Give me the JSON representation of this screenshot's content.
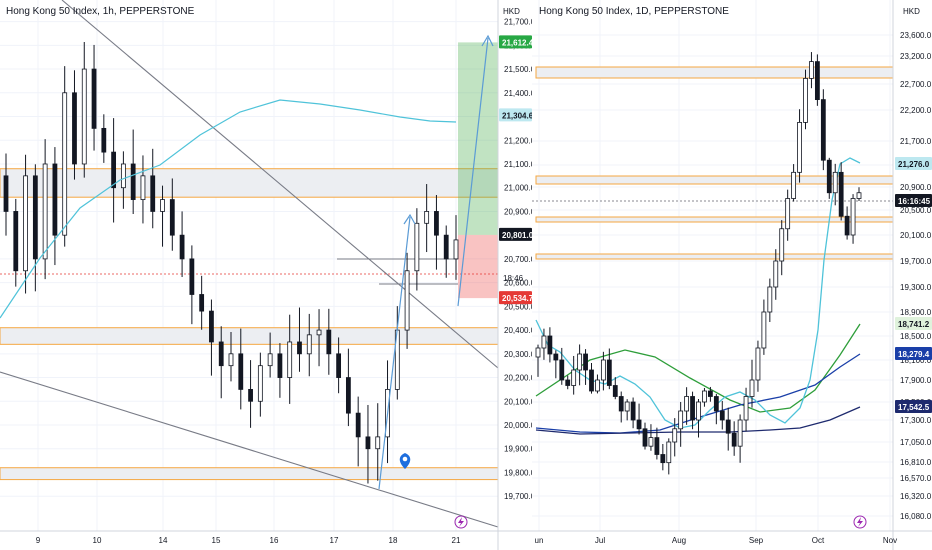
{
  "charts": {
    "left": {
      "title": "Hong Kong 50 Index, 1h, PEPPERSTONE",
      "currency": "HKD",
      "yticks": [
        "21,700.0",
        "21,600.0",
        "21,500.0",
        "21,400.0",
        "21,300.0",
        "21,200.0",
        "21,100.0",
        "21,000.0",
        "20,900.0",
        "20,700.0",
        "20,600.0",
        "20,500.0",
        "20,400.0",
        "20,300.0",
        "20,200.0",
        "20,100.0",
        "20,000.0",
        "19,900.0",
        "19,800.0",
        "19,700.0"
      ],
      "xticks": [
        "9",
        "10",
        "14",
        "15",
        "16",
        "17",
        "18",
        "21"
      ],
      "badges": {
        "target": "21,612.4",
        "ma": "21,304.6",
        "price": "20,801.0",
        "stop": "20,534.7",
        "countdown": "18:46"
      }
    },
    "right": {
      "title": "Hong Kong 50 Index, 1D, PEPPERSTONE",
      "currency": "HKD",
      "yticks": [
        "23,600.0",
        "23,200.0",
        "22,700.0",
        "22,200.0",
        "21,700.0",
        "21,200.0",
        "20,900.0",
        "20,500.0",
        "20,100.0",
        "19,700.0",
        "19,300.0",
        "18,900.0",
        "18,500.0",
        "18,100.0",
        "17,900.0",
        "17,500.0",
        "17,300.0",
        "17,050.0",
        "16,810.0",
        "16,570.0",
        "16,320.0",
        "16,080.0"
      ],
      "xticks": [
        "un",
        "Jul",
        "Aug",
        "Sep",
        "Oct",
        "Nov"
      ],
      "badges": {
        "ma_fast": "21,276.0",
        "price": "16:16:45",
        "ma_green": "18,741.2",
        "ma_blue": "18,279.4",
        "ma_navy": "17,542.5"
      }
    }
  },
  "colors": {
    "up": "#ffffff",
    "down": "#131722",
    "cyan": "#4fc3d9",
    "green": "#2e9e3a",
    "blue": "#1a3fa8",
    "navy": "#1e2a6e",
    "orange": "#f5a742",
    "red": "#e53935",
    "grid": "#f0f3fa",
    "arrow": "#5b9bd5"
  },
  "chart_data": [
    {
      "type": "candlestick",
      "title": "Hong Kong 50 Index, 1h, PEPPERSTONE",
      "x": [
        "9",
        "10",
        "14",
        "15",
        "16",
        "17",
        "18",
        "21"
      ],
      "ylim": [
        19650,
        21750
      ],
      "ylabel": "HKD",
      "price_levels": {
        "target": 21612.4,
        "moving_average": 21304.6,
        "entry": 20801.0,
        "stop": 20534.7
      },
      "zones": [
        [
          20960,
          21080
        ],
        [
          20340,
          20410
        ],
        [
          19770,
          19820
        ]
      ],
      "series_close_approx": [
        {
          "name": "price",
          "values": [
            21000,
            20700,
            21300,
            21150,
            21600,
            21200,
            21050,
            20900,
            21100,
            20900,
            20800,
            20550,
            20450,
            20300,
            20200,
            20050,
            19950,
            20500,
            20800,
            20750
          ]
        }
      ]
    },
    {
      "type": "candlestick",
      "title": "Hong Kong 50 Index, 1D, PEPPERSTONE",
      "x": [
        "un",
        "Jul",
        "Aug",
        "Sep",
        "Oct",
        "Nov"
      ],
      "ylim": [
        16000,
        23900
      ],
      "ylabel": "HKD",
      "moving_averages": [
        {
          "name": "fast",
          "last": 21276.0
        },
        {
          "name": "green",
          "last": 18741.2
        },
        {
          "name": "blue",
          "last": 18279.4
        },
        {
          "name": "navy",
          "last": 17542.5
        }
      ],
      "zones": [
        [
          22950,
          23200
        ],
        [
          20900,
          21050
        ],
        [
          20380,
          20500
        ],
        [
          19750,
          19870
        ]
      ],
      "series_close_approx": [
        {
          "name": "price",
          "values": [
            18300,
            18000,
            17900,
            17700,
            17900,
            18100,
            17600,
            17300,
            17200,
            17000,
            16950,
            17200,
            17400,
            17600,
            17500,
            17300,
            17100,
            17600,
            18300,
            19300,
            20800,
            22400,
            22800,
            21200,
            20500,
            20900
          ]
        }
      ]
    }
  ]
}
